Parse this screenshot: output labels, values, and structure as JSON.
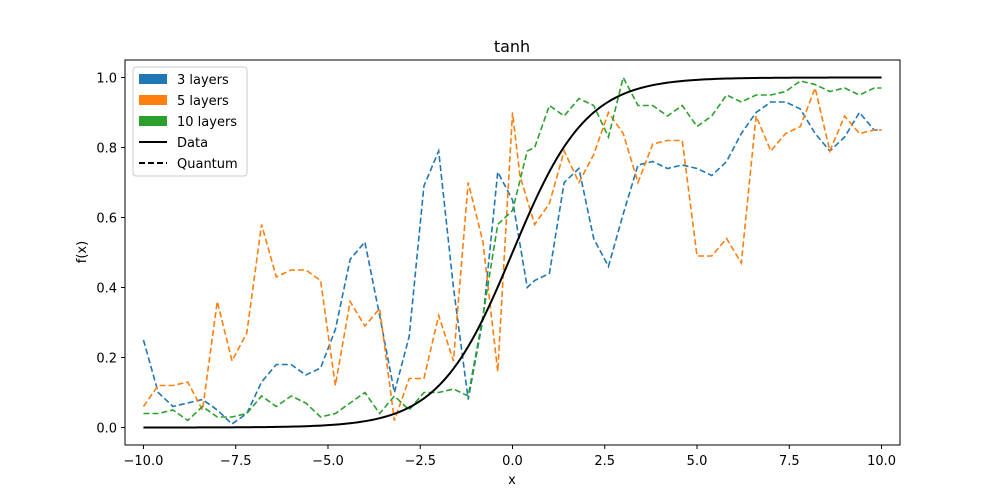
{
  "chart_data": {
    "type": "line",
    "title": "tanh",
    "xlabel": "x",
    "ylabel": "f(x)",
    "xlim": [
      -10.5,
      10.5
    ],
    "ylim": [
      -0.05,
      1.05
    ],
    "xticks": [
      -10.0,
      -7.5,
      -5.0,
      -2.5,
      0.0,
      2.5,
      5.0,
      7.5,
      10.0
    ],
    "xtick_labels": [
      "−10.0",
      "−7.5",
      "−5.0",
      "−2.5",
      "0.0",
      "2.5",
      "5.0",
      "7.5",
      "10.0"
    ],
    "yticks": [
      0.0,
      0.2,
      0.4,
      0.6,
      0.8,
      1.0
    ],
    "ytick_labels": [
      "0.0",
      "0.2",
      "0.4",
      "0.6",
      "0.8",
      "1.0"
    ],
    "grid": false,
    "legend_position": "upper-left",
    "legend": [
      {
        "label": "3 layers",
        "kind": "patch",
        "color": "#1f77b4"
      },
      {
        "label": "5 layers",
        "kind": "patch",
        "color": "#ff7f0e"
      },
      {
        "label": "10 layers",
        "kind": "patch",
        "color": "#2ca02c"
      },
      {
        "label": "Data",
        "kind": "solid-line",
        "color": "#000000"
      },
      {
        "label": "Quantum",
        "kind": "dashed-line",
        "color": "#000000"
      }
    ],
    "series": [
      {
        "name": "3 layers",
        "style": "dashed",
        "color": "#1f77b4",
        "x": [
          -10.0,
          -9.6,
          -9.2,
          -8.8,
          -8.4,
          -8.0,
          -7.6,
          -7.2,
          -6.8,
          -6.4,
          -6.0,
          -5.6,
          -5.2,
          -4.8,
          -4.4,
          -4.0,
          -3.6,
          -3.2,
          -2.8,
          -2.4,
          -2.0,
          -1.6,
          -1.2,
          -0.8,
          -0.4,
          0.0,
          0.4,
          0.6,
          1.0,
          1.4,
          1.8,
          2.2,
          2.6,
          3.0,
          3.4,
          3.8,
          4.2,
          4.6,
          5.0,
          5.4,
          5.8,
          6.2,
          6.6,
          7.0,
          7.4,
          7.8,
          8.2,
          8.6,
          9.0,
          9.4,
          9.8,
          10.0
        ],
        "y": [
          0.25,
          0.1,
          0.06,
          0.07,
          0.08,
          0.05,
          0.01,
          0.04,
          0.13,
          0.18,
          0.18,
          0.15,
          0.17,
          0.28,
          0.48,
          0.53,
          0.32,
          0.1,
          0.26,
          0.69,
          0.79,
          0.4,
          0.08,
          0.31,
          0.73,
          0.65,
          0.4,
          0.42,
          0.44,
          0.7,
          0.74,
          0.54,
          0.46,
          0.61,
          0.75,
          0.76,
          0.74,
          0.75,
          0.74,
          0.72,
          0.76,
          0.84,
          0.9,
          0.93,
          0.93,
          0.91,
          0.84,
          0.79,
          0.83,
          0.9,
          0.85,
          0.85
        ]
      },
      {
        "name": "5 layers",
        "style": "dashed",
        "color": "#ff7f0e",
        "x": [
          -10.0,
          -9.6,
          -9.2,
          -8.8,
          -8.4,
          -8.0,
          -7.6,
          -7.2,
          -6.8,
          -6.4,
          -6.0,
          -5.6,
          -5.2,
          -4.8,
          -4.4,
          -4.0,
          -3.6,
          -3.2,
          -2.8,
          -2.4,
          -2.0,
          -1.6,
          -1.2,
          -0.8,
          -0.4,
          0.0,
          0.2,
          0.6,
          1.0,
          1.4,
          1.8,
          2.2,
          2.6,
          3.0,
          3.4,
          3.8,
          4.2,
          4.6,
          5.0,
          5.4,
          5.8,
          6.2,
          6.6,
          7.0,
          7.4,
          7.8,
          8.2,
          8.6,
          9.0,
          9.4,
          9.8,
          10.0
        ],
        "y": [
          0.06,
          0.12,
          0.12,
          0.13,
          0.05,
          0.36,
          0.19,
          0.27,
          0.58,
          0.43,
          0.45,
          0.45,
          0.42,
          0.12,
          0.36,
          0.29,
          0.34,
          0.02,
          0.14,
          0.14,
          0.32,
          0.19,
          0.7,
          0.53,
          0.16,
          0.9,
          0.72,
          0.58,
          0.64,
          0.79,
          0.7,
          0.78,
          0.9,
          0.84,
          0.7,
          0.81,
          0.82,
          0.82,
          0.49,
          0.49,
          0.54,
          0.47,
          0.89,
          0.79,
          0.84,
          0.86,
          0.97,
          0.79,
          0.89,
          0.84,
          0.85,
          0.85
        ]
      },
      {
        "name": "10 layers",
        "style": "dashed",
        "color": "#2ca02c",
        "x": [
          -10.0,
          -9.6,
          -9.2,
          -8.8,
          -8.4,
          -8.0,
          -7.6,
          -7.2,
          -6.8,
          -6.4,
          -6.0,
          -5.6,
          -5.2,
          -4.8,
          -4.4,
          -4.0,
          -3.6,
          -3.2,
          -2.8,
          -2.4,
          -2.0,
          -1.6,
          -1.2,
          -0.8,
          -0.4,
          0.0,
          0.4,
          0.6,
          1.0,
          1.4,
          1.8,
          2.2,
          2.6,
          3.0,
          3.4,
          3.8,
          4.2,
          4.6,
          5.0,
          5.4,
          5.8,
          6.2,
          6.6,
          7.0,
          7.4,
          7.8,
          8.2,
          8.6,
          9.0,
          9.4,
          9.8,
          10.0
        ],
        "y": [
          0.04,
          0.04,
          0.05,
          0.02,
          0.06,
          0.03,
          0.03,
          0.04,
          0.09,
          0.06,
          0.09,
          0.07,
          0.03,
          0.04,
          0.07,
          0.1,
          0.04,
          0.09,
          0.05,
          0.1,
          0.1,
          0.11,
          0.09,
          0.32,
          0.58,
          0.62,
          0.79,
          0.8,
          0.92,
          0.89,
          0.94,
          0.92,
          0.83,
          1.0,
          0.92,
          0.92,
          0.89,
          0.92,
          0.86,
          0.89,
          0.95,
          0.93,
          0.95,
          0.95,
          0.96,
          0.99,
          0.98,
          0.96,
          0.97,
          0.95,
          0.97,
          0.97
        ]
      },
      {
        "name": "Data",
        "style": "solid",
        "color": "#000000",
        "function": "sigmoid(x)"
      }
    ]
  }
}
